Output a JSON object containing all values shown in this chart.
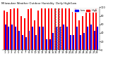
{
  "title": "Milwaukee Weather Outdoor Humidity",
  "subtitle": "Daily High/Low",
  "high_values": [
    93,
    90,
    96,
    97,
    97,
    80,
    75,
    96,
    97,
    70,
    93,
    97,
    97,
    97,
    97,
    97,
    97,
    97,
    97,
    97,
    90,
    97,
    70,
    80,
    90,
    93,
    90,
    97
  ],
  "low_values": [
    60,
    55,
    60,
    55,
    45,
    35,
    30,
    45,
    55,
    35,
    55,
    55,
    25,
    25,
    40,
    55,
    55,
    60,
    55,
    35,
    35,
    55,
    35,
    40,
    55,
    60,
    45,
    55
  ],
  "x_labels": [
    "1",
    "2",
    "3",
    "4",
    "5",
    "6",
    "7",
    "8",
    "9",
    "10",
    "11",
    "12",
    "13",
    "14",
    "15",
    "16",
    "17",
    "18",
    "19",
    "20",
    "21",
    "22",
    "23",
    "24",
    "25",
    "26",
    "27",
    "28"
  ],
  "high_color": "#ff0000",
  "low_color": "#0000ff",
  "bg_color": "#ffffff",
  "ylim": [
    0,
    100
  ],
  "yticks": [
    0,
    20,
    40,
    60,
    80,
    100
  ],
  "dashed_bar_indices": [
    15,
    16
  ],
  "legend_high": "High",
  "legend_low": "Low"
}
